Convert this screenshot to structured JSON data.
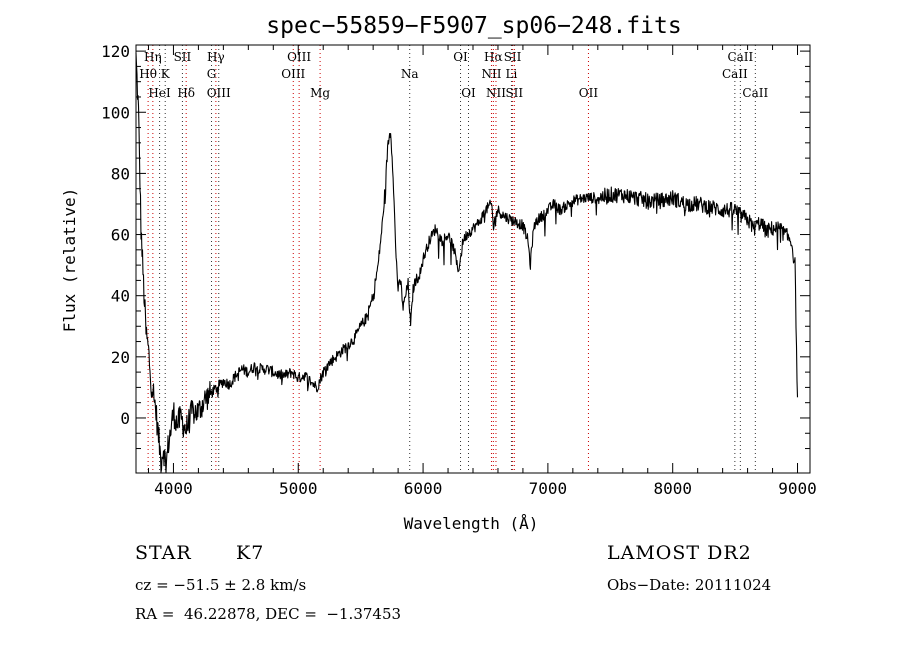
{
  "chart_data": {
    "type": "line",
    "title": "spec−55859−F5907_sp06−248.fits",
    "xlabel": "Wavelength (Å)",
    "ylabel": "Flux (relative)",
    "xlim": [
      3700,
      9100
    ],
    "ylim": [
      -18,
      122
    ],
    "xticks": [
      4000,
      5000,
      6000,
      7000,
      8000,
      9000
    ],
    "yticks": [
      0,
      20,
      40,
      60,
      80,
      100,
      120
    ],
    "grid": false,
    "series": [
      {
        "x": [
          3700,
          3720,
          3740,
          3760,
          3780,
          3800,
          3820,
          3840,
          3860,
          3880,
          3900,
          3920,
          3940,
          3960,
          3980,
          4000,
          4030,
          4060,
          4100,
          4150,
          4200,
          4250,
          4300,
          4350,
          4400,
          4450,
          4500,
          4550,
          4600,
          4650,
          4700,
          4750,
          4800,
          4850,
          4900,
          4950,
          5000,
          5050,
          5100,
          5150,
          5200,
          5250,
          5300,
          5350,
          5400,
          5450,
          5500,
          5550,
          5600,
          5640,
          5680,
          5700,
          5720,
          5740,
          5760,
          5780,
          5800,
          5820,
          5840,
          5860,
          5880,
          5900,
          5920,
          5940,
          5960,
          5980,
          6000,
          6050,
          6100,
          6150,
          6200,
          6250,
          6280,
          6300,
          6320,
          6350,
          6400,
          6450,
          6500,
          6550,
          6563,
          6580,
          6600,
          6650,
          6700,
          6750,
          6800,
          6840,
          6860,
          6880,
          6900,
          6950,
          7000,
          7050,
          7100,
          7200,
          7300,
          7400,
          7500,
          7600,
          7700,
          7800,
          7900,
          8000,
          8100,
          8200,
          8300,
          8400,
          8500,
          8550,
          8600,
          8650,
          8700,
          8750,
          8800,
          8850,
          8900,
          8950,
          8980,
          9000
        ],
        "y": [
          118,
          100,
          62,
          44,
          28,
          22,
          12,
          8,
          2,
          -6,
          -14,
          -10,
          -16,
          -8,
          -4,
          2,
          -2,
          0,
          -4,
          2,
          2,
          6,
          8,
          10,
          12,
          11,
          14,
          16,
          15,
          17,
          16,
          16,
          15,
          14,
          14,
          15,
          13,
          14,
          12,
          10,
          15,
          18,
          20,
          22,
          24,
          26,
          30,
          33,
          40,
          50,
          66,
          78,
          90,
          94,
          80,
          56,
          42,
          45,
          36,
          40,
          44,
          30,
          42,
          45,
          46,
          48,
          52,
          58,
          62,
          58,
          60,
          55,
          48,
          52,
          58,
          60,
          62,
          64,
          68,
          70,
          62,
          66,
          68,
          66,
          65,
          64,
          63,
          58,
          50,
          60,
          64,
          66,
          68,
          70,
          68,
          71,
          72,
          72,
          73,
          73,
          72,
          71,
          71,
          72,
          70,
          70,
          69,
          68,
          68,
          66,
          65,
          62,
          64,
          61,
          62,
          62,
          60,
          58,
          50,
          5
        ]
      }
    ],
    "lines": [
      {
        "label": "Hη",
        "wl": 3835,
        "row": 0,
        "color": "red"
      },
      {
        "label": "Hθ",
        "wl": 3797,
        "row": 1,
        "color": "red"
      },
      {
        "label": "HeI",
        "wl": 3889,
        "row": 2,
        "color": "black"
      },
      {
        "label": "K",
        "wl": 3934,
        "row": 1,
        "color": "black"
      },
      {
        "label": "SII",
        "wl": 4072,
        "row": 0,
        "color": "black"
      },
      {
        "label": "Hδ",
        "wl": 4102,
        "row": 2,
        "color": "red"
      },
      {
        "label": "Hγ",
        "wl": 4340,
        "row": 0,
        "color": "red"
      },
      {
        "label": "G",
        "wl": 4305,
        "row": 1,
        "color": "black"
      },
      {
        "label": "OIII",
        "wl": 4363,
        "row": 2,
        "color": "black"
      },
      {
        "label": "OIII",
        "wl": 5007,
        "row": 0,
        "color": "red"
      },
      {
        "label": "OIII",
        "wl": 4960,
        "row": 1,
        "color": "red"
      },
      {
        "label": "Mg",
        "wl": 5175,
        "row": 2,
        "color": "red"
      },
      {
        "label": "Na",
        "wl": 5893,
        "row": 1,
        "color": "black"
      },
      {
        "label": "OI",
        "wl": 6300,
        "row": 0,
        "color": "black"
      },
      {
        "label": "OI",
        "wl": 6364,
        "row": 2,
        "color": "black"
      },
      {
        "label": "Hα",
        "wl": 6563,
        "row": 0,
        "color": "red"
      },
      {
        "label": "NII",
        "wl": 6548,
        "row": 1,
        "color": "red"
      },
      {
        "label": "NII",
        "wl": 6584,
        "row": 2,
        "color": "red"
      },
      {
        "label": "SII",
        "wl": 6717,
        "row": 0,
        "color": "red"
      },
      {
        "label": "Li",
        "wl": 6708,
        "row": 1,
        "color": "black"
      },
      {
        "label": "SII",
        "wl": 6731,
        "row": 2,
        "color": "red"
      },
      {
        "label": "OII",
        "wl": 7325,
        "row": 2,
        "color": "red"
      },
      {
        "label": "CaII",
        "wl": 8542,
        "row": 0,
        "color": "black"
      },
      {
        "label": "CaII",
        "wl": 8498,
        "row": 1,
        "color": "black"
      },
      {
        "label": "CaII",
        "wl": 8662,
        "row": 2,
        "color": "black"
      }
    ]
  },
  "info": {
    "object_type": "STAR",
    "subclass": "K7",
    "survey": "LAMOST DR2",
    "cz": "cz = −51.5 ± 2.8 km/s",
    "obs_date": "Obs−Date: 20111024",
    "radec": "RA =  46.22878, DEC =  −1.37453"
  }
}
